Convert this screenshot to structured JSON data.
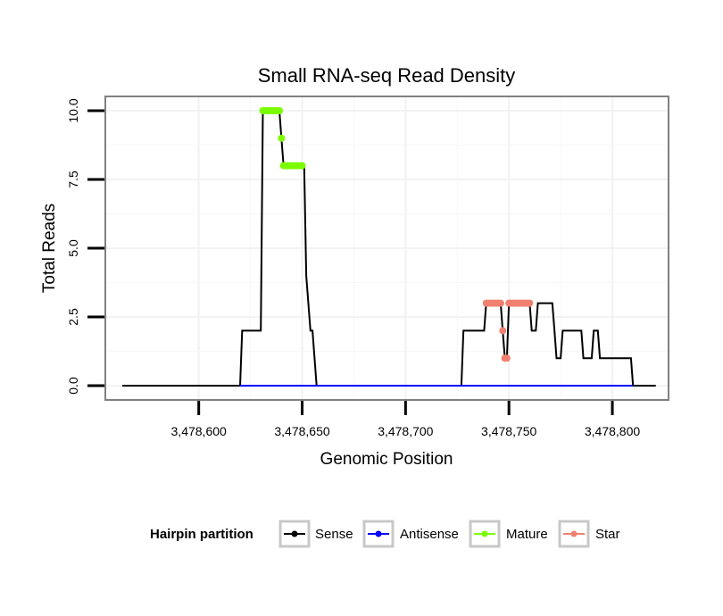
{
  "chart_data": {
    "type": "line",
    "title": "Small RNA-seq Read Density",
    "xlabel": "Genomic Position",
    "ylabel": "Total Reads",
    "xlim": [
      3478560,
      3478822
    ],
    "ylim": [
      0,
      10.5
    ],
    "xticks": [
      {
        "value": 3478600,
        "label": "3,478,600"
      },
      {
        "value": 3478650,
        "label": "3,478,650"
      },
      {
        "value": 3478700,
        "label": "3,478,700"
      },
      {
        "value": 3478750,
        "label": "3,478,750"
      },
      {
        "value": 3478800,
        "label": "3,478,800"
      }
    ],
    "yticks": [
      {
        "value": 0,
        "label": "0.0"
      },
      {
        "value": 2.5,
        "label": "2.5"
      },
      {
        "value": 5,
        "label": "5.0"
      },
      {
        "value": 7.5,
        "label": "7.5"
      },
      {
        "value": 10,
        "label": "10.0"
      }
    ],
    "grid": true,
    "legend": {
      "title": "Hairpin partition",
      "position": "bottom",
      "entries": [
        {
          "name": "Sense",
          "color": "#000000"
        },
        {
          "name": "Antisense",
          "color": "#0000ff"
        },
        {
          "name": "Mature",
          "color": "#7cfc00"
        },
        {
          "name": "Star",
          "color": "#f08070"
        }
      ]
    },
    "series": [
      {
        "name": "Sense",
        "color": "#000000",
        "kind": "line",
        "points": [
          [
            3478563,
            0
          ],
          [
            3478620,
            0
          ],
          [
            3478621,
            2
          ],
          [
            3478630,
            2
          ],
          [
            3478631,
            10
          ],
          [
            3478639,
            10
          ],
          [
            3478640,
            9
          ],
          [
            3478641,
            8
          ],
          [
            3478651,
            8
          ],
          [
            3478652,
            4
          ],
          [
            3478654,
            2
          ],
          [
            3478655,
            2
          ],
          [
            3478657,
            0
          ],
          [
            3478727,
            0
          ],
          [
            3478728,
            2
          ],
          [
            3478738,
            2
          ],
          [
            3478739,
            3
          ],
          [
            3478746,
            3
          ],
          [
            3478747,
            2
          ],
          [
            3478748,
            1
          ],
          [
            3478749,
            1
          ],
          [
            3478750,
            3
          ],
          [
            3478760,
            3
          ],
          [
            3478761,
            2
          ],
          [
            3478763,
            2
          ],
          [
            3478764,
            3
          ],
          [
            3478771,
            3
          ],
          [
            3478772,
            2
          ],
          [
            3478773,
            1
          ],
          [
            3478775,
            1
          ],
          [
            3478776,
            2
          ],
          [
            3478785,
            2
          ],
          [
            3478786,
            1
          ],
          [
            3478790,
            1
          ],
          [
            3478791,
            2
          ],
          [
            3478793,
            2
          ],
          [
            3478794,
            1
          ],
          [
            3478809,
            1
          ],
          [
            3478810,
            0
          ],
          [
            3478821,
            0
          ]
        ]
      },
      {
        "name": "Antisense",
        "color": "#0000ff",
        "kind": "line",
        "points": [
          [
            3478620,
            0
          ],
          [
            3478657,
            0
          ],
          [
            3478727,
            0
          ],
          [
            3478810,
            0
          ]
        ]
      },
      {
        "name": "Mature",
        "color": "#7cfc00",
        "kind": "points",
        "points": [
          [
            3478631,
            10
          ],
          [
            3478632,
            10
          ],
          [
            3478633,
            10
          ],
          [
            3478634,
            10
          ],
          [
            3478635,
            10
          ],
          [
            3478636,
            10
          ],
          [
            3478637,
            10
          ],
          [
            3478638,
            10
          ],
          [
            3478639,
            10
          ],
          [
            3478640,
            9
          ],
          [
            3478641,
            8
          ],
          [
            3478642,
            8
          ],
          [
            3478643,
            8
          ],
          [
            3478644,
            8
          ],
          [
            3478645,
            8
          ],
          [
            3478646,
            8
          ],
          [
            3478647,
            8
          ],
          [
            3478648,
            8
          ],
          [
            3478649,
            8
          ],
          [
            3478650,
            8
          ]
        ]
      },
      {
        "name": "Star",
        "color": "#f08070",
        "kind": "points",
        "points": [
          [
            3478739,
            3
          ],
          [
            3478740,
            3
          ],
          [
            3478741,
            3
          ],
          [
            3478742,
            3
          ],
          [
            3478743,
            3
          ],
          [
            3478744,
            3
          ],
          [
            3478745,
            3
          ],
          [
            3478746,
            3
          ],
          [
            3478747,
            2
          ],
          [
            3478748,
            1
          ],
          [
            3478749,
            1
          ],
          [
            3478750,
            3
          ],
          [
            3478751,
            3
          ],
          [
            3478752,
            3
          ],
          [
            3478753,
            3
          ],
          [
            3478754,
            3
          ],
          [
            3478755,
            3
          ],
          [
            3478756,
            3
          ],
          [
            3478757,
            3
          ],
          [
            3478758,
            3
          ],
          [
            3478759,
            3
          ],
          [
            3478760,
            3
          ]
        ]
      }
    ]
  }
}
